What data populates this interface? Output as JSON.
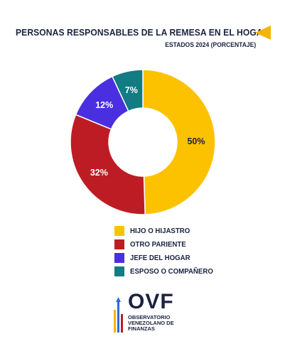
{
  "header": {
    "title": "PERSONAS RESPONSABLES DE LA REMESA EN EL HOGAR",
    "subtitle": "ESTADOS 2024 (PORCENTAJE)"
  },
  "colors": {
    "accent": "#f5b400",
    "text": "#1a2240"
  },
  "chart_data": {
    "type": "pie",
    "style": "donut",
    "title": "PERSONAS RESPONSABLES DE LA REMESA EN EL HOGAR",
    "subtitle": "ESTADOS 2024 (PORCENTAJE)",
    "legend_position": "bottom",
    "slices": [
      {
        "label": "HIJO O HIJASTRO",
        "value": 50,
        "display": "50%",
        "color": "#fcc200",
        "label_color": "#1a2240"
      },
      {
        "label": "OTRO PARIENTE",
        "value": 32,
        "display": "32%",
        "color": "#be1c24",
        "label_color": "#ffffff"
      },
      {
        "label": "JEFE DEL HOGAR",
        "value": 12,
        "display": "12%",
        "color": "#4a2fe0",
        "label_color": "#ffffff"
      },
      {
        "label": "ESPOSO O COMPAÑERO",
        "value": 7,
        "display": "7%",
        "color": "#127b83",
        "label_color": "#ffffff"
      }
    ]
  },
  "logo": {
    "letters": "OVF",
    "line1": "OBSERVATORIO",
    "line2": "VENEZOLANO DE",
    "line3": "FINANZAS"
  }
}
